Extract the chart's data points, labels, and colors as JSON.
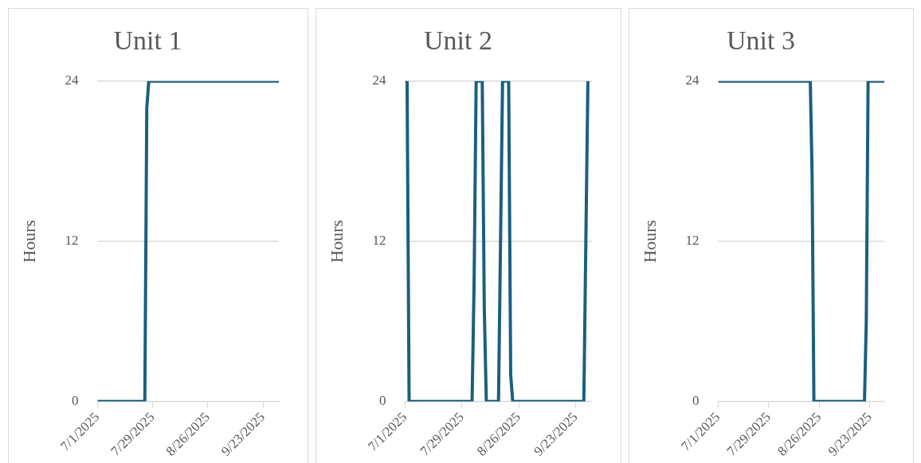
{
  "chart_data": [
    {
      "type": "line",
      "title": "Unit 1",
      "ylabel": "Hours",
      "color": "#1a5f80",
      "grid": "y",
      "x": [
        "2025-07-01",
        "2025-07-25",
        "2025-07-26",
        "2025-07-27",
        "2025-10-01"
      ],
      "values": [
        0,
        0,
        22,
        24,
        24
      ],
      "xlim": [
        "2025-07-01",
        "2025-10-01"
      ],
      "xticks": [
        {
          "value": "2025-07-01",
          "label": "7/1/2025"
        },
        {
          "value": "2025-07-29",
          "label": "7/29/2025"
        },
        {
          "value": "2025-08-26",
          "label": "8/26/2025"
        },
        {
          "value": "2025-09-23",
          "label": "9/23/2025"
        }
      ],
      "ylim": [
        0,
        24
      ],
      "yticks": [
        0,
        12,
        24
      ]
    },
    {
      "type": "line",
      "title": "Unit 2",
      "ylabel": "Hours",
      "color": "#1a5f80",
      "grid": "y",
      "x": [
        "2025-07-01",
        "2025-07-02",
        "2025-07-03",
        "2025-08-03",
        "2025-08-04",
        "2025-08-05",
        "2025-08-08",
        "2025-08-09",
        "2025-08-10",
        "2025-08-16",
        "2025-08-17",
        "2025-08-18",
        "2025-08-21",
        "2025-08-22",
        "2025-08-23",
        "2025-09-27",
        "2025-09-28",
        "2025-09-29"
      ],
      "values": [
        24,
        24,
        0,
        0,
        9,
        24,
        24,
        7,
        0,
        0,
        12,
        24,
        24,
        2,
        0,
        0,
        12,
        24
      ],
      "xlim": [
        "2025-07-01",
        "2025-10-01"
      ],
      "xticks": [
        {
          "value": "2025-07-01",
          "label": "7/1/2025"
        },
        {
          "value": "2025-07-29",
          "label": "7/29/2025"
        },
        {
          "value": "2025-08-26",
          "label": "8/26/2025"
        },
        {
          "value": "2025-09-23",
          "label": "9/23/2025"
        }
      ],
      "ylim": [
        0,
        24
      ],
      "yticks": [
        0,
        12,
        24
      ]
    },
    {
      "type": "line",
      "title": "Unit 3",
      "ylabel": "Hours",
      "color": "#1a5f80",
      "grid": "y",
      "x": [
        "2025-07-01",
        "2025-08-21",
        "2025-08-22",
        "2025-08-23",
        "2025-09-20",
        "2025-09-21",
        "2025-09-22",
        "2025-10-01"
      ],
      "values": [
        24,
        24,
        17,
        0,
        0,
        6,
        24,
        24
      ],
      "xlim": [
        "2025-07-01",
        "2025-10-01"
      ],
      "xticks": [
        {
          "value": "2025-07-01",
          "label": "7/1/2025"
        },
        {
          "value": "2025-07-29",
          "label": "7/29/2025"
        },
        {
          "value": "2025-08-26",
          "label": "8/26/2025"
        },
        {
          "value": "2025-09-23",
          "label": "9/23/2025"
        }
      ],
      "ylim": [
        0,
        24
      ],
      "yticks": [
        0,
        12,
        24
      ]
    }
  ]
}
